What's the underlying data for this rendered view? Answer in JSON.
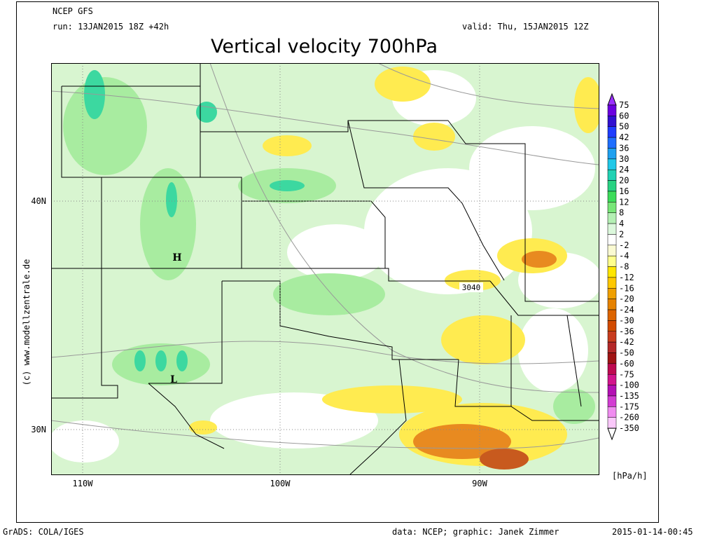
{
  "header": {
    "model": "NCEP GFS",
    "run": "run: 13JAN2015 18Z +42h",
    "valid": "valid: Thu, 15JAN2015 12Z",
    "title": "Vertical velocity 700hPa"
  },
  "map": {
    "lat_labels": [
      "40N",
      "30N"
    ],
    "lon_labels": [
      "110W",
      "100W",
      "90W"
    ],
    "markers": [
      "H",
      "L"
    ],
    "contour_label": "3040",
    "side_text": "(c) www.modellzentrale.de"
  },
  "colorbar": {
    "levels": [
      75,
      60,
      50,
      42,
      36,
      30,
      24,
      20,
      16,
      12,
      8,
      4,
      2,
      -2,
      -4,
      -8,
      -12,
      -16,
      -20,
      -24,
      -30,
      -36,
      -42,
      -50,
      -60,
      -75,
      -100,
      -135,
      -175,
      -260,
      -350
    ],
    "colors": [
      "#9b30ff",
      "#6a00e0",
      "#3010d0",
      "#1e3cff",
      "#1e6eff",
      "#1ea0f0",
      "#20c8e8",
      "#20d2b4",
      "#28d282",
      "#3cdc5a",
      "#78e678",
      "#b4f0b4",
      "#dcf8dc",
      "#ffffff",
      "#fafad2",
      "#ffff8c",
      "#ffe600",
      "#ffc800",
      "#f0a000",
      "#e68200",
      "#dc6400",
      "#d24b00",
      "#c83c1e",
      "#b42828",
      "#a01414",
      "#be0a50",
      "#d2148c",
      "#b40fb4",
      "#d23cd2",
      "#f08cf0",
      "#fac8fa",
      "#ffffff"
    ],
    "unit": "[hPa/h]"
  },
  "footer": {
    "left": "GrADS: COLA/IGES",
    "center": "data: NCEP; graphic: Janek Zimmer",
    "right": "2015-01-14-00:45"
  }
}
